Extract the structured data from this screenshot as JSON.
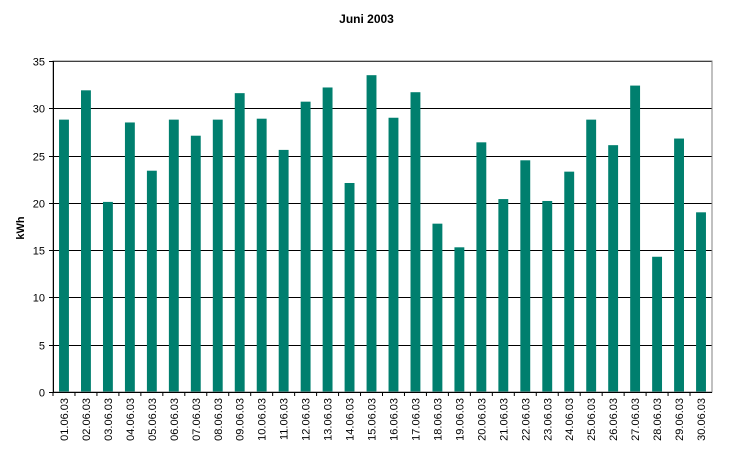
{
  "chart_data": {
    "type": "bar",
    "title": "Juni 2003",
    "xlabel": "",
    "ylabel": "kWh",
    "ylim": [
      0,
      35
    ],
    "yticks": [
      0,
      5,
      10,
      15,
      20,
      25,
      30,
      35
    ],
    "grid": true,
    "bar_color": "#007F6E",
    "categories": [
      "01.06.03",
      "02.06.03",
      "03.06.03",
      "04.06.03",
      "05.06.03",
      "06.06.03",
      "07.06.03",
      "08.06.03",
      "09.06.03",
      "10.06.03",
      "11.06.03",
      "12.06.03",
      "13.06.03",
      "14.06.03",
      "15.06.03",
      "16.06.03",
      "17.06.03",
      "18.06.03",
      "19.06.03",
      "20.06.03",
      "21.06.03",
      "22.06.03",
      "23.06.03",
      "24.06.03",
      "25.06.03",
      "26.06.03",
      "27.06.03",
      "28.06.03",
      "29.06.03",
      "30.06.03"
    ],
    "values": [
      28.8,
      31.9,
      20.1,
      28.5,
      23.4,
      28.8,
      27.1,
      28.8,
      31.6,
      28.9,
      25.6,
      30.7,
      32.2,
      22.1,
      33.5,
      29.0,
      31.7,
      17.8,
      15.3,
      26.4,
      20.4,
      24.5,
      20.2,
      23.3,
      28.8,
      26.1,
      32.4,
      14.3,
      26.8,
      19.0
    ]
  }
}
